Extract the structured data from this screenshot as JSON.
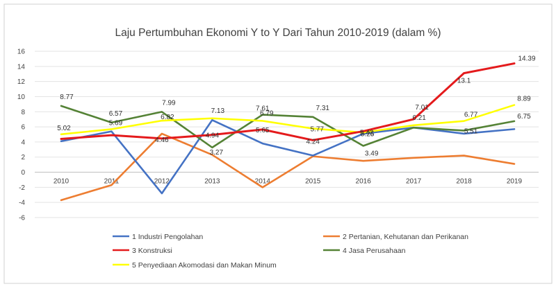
{
  "chart_data": {
    "type": "line",
    "title": "Laju Pertumbuhan Ekonomi Y to Y Dari Tahun 2010-2019 (dalam %)",
    "categories": [
      "2010",
      "2011",
      "2012",
      "2013",
      "2014",
      "2015",
      "2016",
      "2017",
      "2018",
      "2019"
    ],
    "ylim": [
      -6,
      16
    ],
    "yticks": [
      16,
      14,
      12,
      10,
      8,
      6,
      4,
      2,
      0,
      -2,
      -4,
      -6
    ],
    "grid": true,
    "legend_position": "bottom",
    "series": [
      {
        "name": "1 Industri Pengolahan",
        "color": "#4472C4",
        "values": [
          4.1,
          5.4,
          -2.8,
          6.9,
          3.8,
          2.2,
          5.1,
          5.9,
          5.1,
          5.7
        ],
        "labels": [
          "",
          "",
          "",
          "",
          "",
          "",
          "",
          "",
          "",
          ""
        ]
      },
      {
        "name": "2 Pertanian, Kehutanan dan Perikanan",
        "color": "#ED7D31",
        "values": [
          -3.7,
          -1.7,
          5.1,
          2.3,
          -2.0,
          2.1,
          1.5,
          1.9,
          2.2,
          1.1
        ],
        "labels": [
          "",
          "",
          "",
          "",
          "",
          "",
          "",
          "",
          "",
          ""
        ]
      },
      {
        "name": "3 Konstruksi",
        "color": "#E41A1C",
        "values": [
          4.4,
          4.9,
          4.46,
          4.94,
          5.65,
          4.24,
          5.42,
          7.01,
          13.1,
          14.39
        ],
        "labels": [
          "",
          "",
          "4.46",
          "4.94",
          "5.65",
          "4.24",
          "5.42",
          "7.01",
          "13.1",
          "14.39"
        ]
      },
      {
        "name": "4 Jasa Perusahaan",
        "color": "#548235",
        "values": [
          8.77,
          6.57,
          7.99,
          3.27,
          7.61,
          7.31,
          3.49,
          5.9,
          5.51,
          6.75
        ],
        "labels": [
          "8.77",
          "6.57",
          "7.99",
          "3.27",
          "7.61",
          "7.31",
          "3.49",
          "",
          "5.51",
          "6.75"
        ]
      },
      {
        "name": "5 Penyediaan Akomodasi dan Makan Minum",
        "color": "#FFFF00",
        "values": [
          5.02,
          5.69,
          6.82,
          7.13,
          6.79,
          5.77,
          5.25,
          6.21,
          6.77,
          8.89
        ],
        "labels": [
          "5.02",
          "5.69",
          "6.82",
          "7.13",
          "6.79",
          "5.77",
          "5.25",
          "6.21",
          "6.77",
          "8.89"
        ]
      }
    ]
  }
}
